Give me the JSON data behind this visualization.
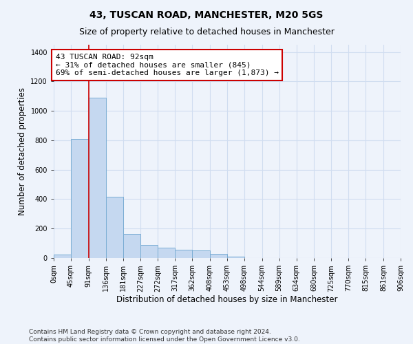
{
  "title": "43, TUSCAN ROAD, MANCHESTER, M20 5GS",
  "subtitle": "Size of property relative to detached houses in Manchester",
  "xlabel": "Distribution of detached houses by size in Manchester",
  "ylabel": "Number of detached properties",
  "bar_color": "#c5d8f0",
  "bar_edge_color": "#7aadd4",
  "bin_edges": [
    0,
    45,
    91,
    136,
    181,
    227,
    272,
    317,
    362,
    408,
    453,
    498,
    544,
    589,
    634,
    680,
    725,
    770,
    815,
    861,
    906
  ],
  "bin_labels": [
    "0sqm",
    "45sqm",
    "91sqm",
    "136sqm",
    "181sqm",
    "227sqm",
    "272sqm",
    "317sqm",
    "362sqm",
    "408sqm",
    "453sqm",
    "498sqm",
    "544sqm",
    "589sqm",
    "634sqm",
    "680sqm",
    "725sqm",
    "770sqm",
    "815sqm",
    "861sqm",
    "906sqm"
  ],
  "counts": [
    25,
    810,
    1090,
    415,
    165,
    90,
    68,
    55,
    50,
    28,
    8,
    2,
    1,
    0,
    0,
    0,
    0,
    0,
    0,
    0
  ],
  "property_size": 92,
  "property_line_color": "#cc0000",
  "annotation_line1": "43 TUSCAN ROAD: 92sqm",
  "annotation_line2": "← 31% of detached houses are smaller (845)",
  "annotation_line3": "69% of semi-detached houses are larger (1,873) →",
  "annotation_box_color": "#ffffff",
  "annotation_box_edge_color": "#cc0000",
  "ylim": [
    0,
    1450
  ],
  "yticks": [
    0,
    200,
    400,
    600,
    800,
    1000,
    1200,
    1400
  ],
  "footer_line1": "Contains HM Land Registry data © Crown copyright and database right 2024.",
  "footer_line2": "Contains public sector information licensed under the Open Government Licence v3.0.",
  "background_color": "#eef3fb",
  "plot_bg_color": "#eef3fb",
  "grid_color": "#d0ddf0",
  "title_fontsize": 10,
  "subtitle_fontsize": 9,
  "axis_label_fontsize": 8.5,
  "tick_fontsize": 7,
  "footer_fontsize": 6.5,
  "annotation_fontsize": 8
}
